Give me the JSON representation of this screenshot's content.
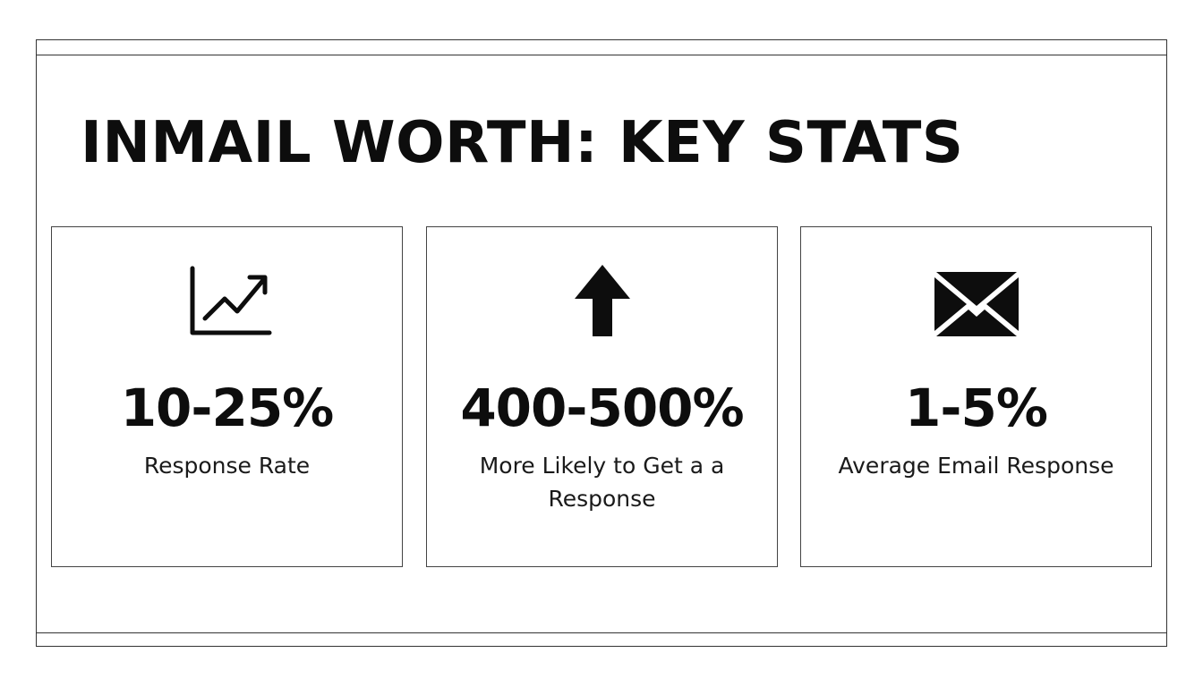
{
  "title": "INMAIL WORTH: KEY STATS",
  "cards": [
    {
      "icon": "trending-up-chart-icon",
      "value": "10-25%",
      "label": "Response Rate"
    },
    {
      "icon": "arrow-up-icon",
      "value": "400-500%",
      "label": "More Likely to Get a a Response"
    },
    {
      "icon": "envelope-icon",
      "value": "1-5%",
      "label": "Average Email Response"
    }
  ],
  "colors": {
    "text": "#0d0d0d",
    "border": "#444444",
    "background": "#ffffff"
  }
}
